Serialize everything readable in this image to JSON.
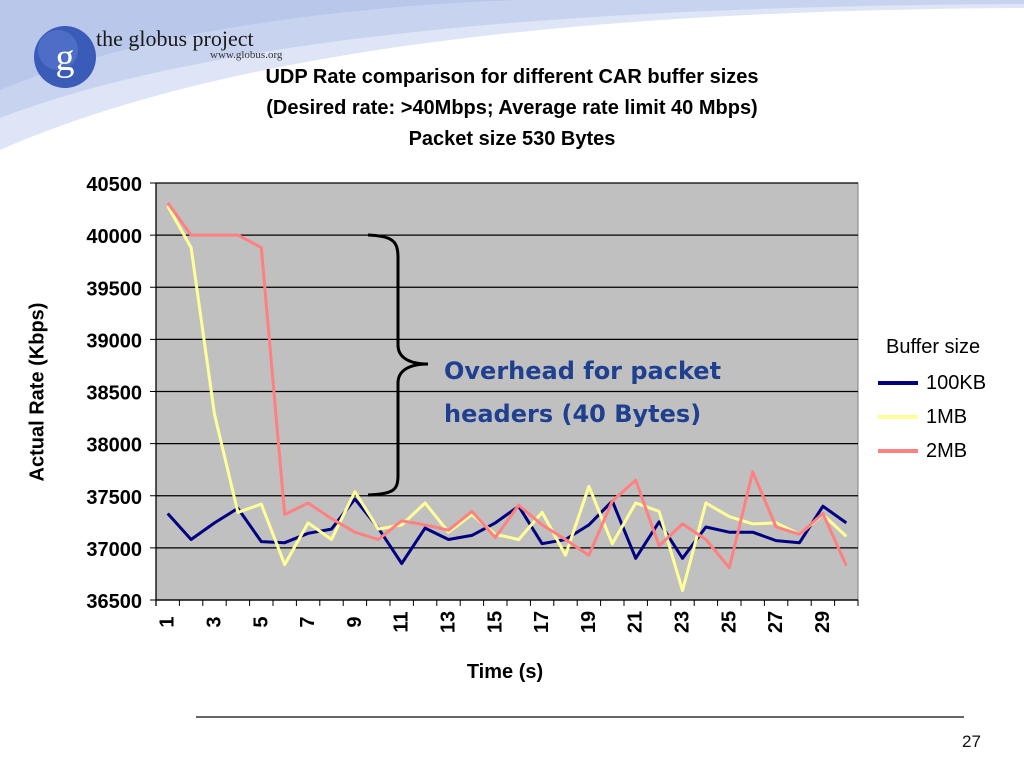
{
  "logo": {
    "brand": "the globus project",
    "url": "www.globus.org",
    "letter": "g"
  },
  "slide": {
    "page_number": "27"
  },
  "annotation": {
    "line1": "Overhead for packet",
    "line2": "headers (40 Bytes)"
  },
  "colors": {
    "plot_bg": "#c0c0c0",
    "series_100KB": "#000080",
    "series_1MB": "#ffff99",
    "series_2MB": "#ff8080",
    "annotation": "#1f3f8f"
  },
  "chart_data": {
    "type": "line",
    "title_lines": [
      "UDP Rate comparison for different CAR buffer sizes",
      "(Desired rate: >40Mbps; Average rate limit 40 Mbps)",
      "Packet size 530 Bytes"
    ],
    "xlabel": "Time (s)",
    "ylabel": "Actual Rate (Kbps)",
    "ylim": [
      36500,
      40500
    ],
    "y_ticks": [
      36500,
      37000,
      37500,
      38000,
      38500,
      39000,
      39500,
      40000,
      40500
    ],
    "x": [
      1,
      2,
      3,
      4,
      5,
      6,
      7,
      8,
      9,
      10,
      11,
      12,
      13,
      14,
      15,
      16,
      17,
      18,
      19,
      20,
      21,
      22,
      23,
      24,
      25,
      26,
      27,
      28,
      29,
      30
    ],
    "x_tick_labels": [
      "1",
      "3",
      "5",
      "7",
      "9",
      "11",
      "13",
      "15",
      "17",
      "19",
      "21",
      "23",
      "25",
      "27",
      "29"
    ],
    "grid": "horizontal",
    "legend": {
      "title": "Buffer size",
      "position": "right"
    },
    "series": [
      {
        "name": "100KB",
        "color": "#000080",
        "values": [
          37330,
          37080,
          37240,
          37380,
          37060,
          37050,
          37140,
          37180,
          37470,
          37190,
          36850,
          37190,
          37080,
          37120,
          37240,
          37400,
          37040,
          37080,
          37220,
          37450,
          36900,
          37250,
          36900,
          37200,
          37150,
          37150,
          37070,
          37050,
          37400,
          37240
        ]
      },
      {
        "name": "1MB",
        "color": "#ffff99",
        "values": [
          40280,
          39880,
          38280,
          37340,
          37420,
          36840,
          37240,
          37080,
          37540,
          37180,
          37220,
          37430,
          37150,
          37320,
          37130,
          37080,
          37340,
          36930,
          37590,
          37040,
          37430,
          37350,
          36590,
          37430,
          37300,
          37230,
          37240,
          37130,
          37320,
          37110
        ]
      },
      {
        "name": "2MB",
        "color": "#ff8080",
        "values": [
          40310,
          40000,
          40000,
          40000,
          39880,
          37320,
          37430,
          37280,
          37150,
          37080,
          37260,
          37220,
          37170,
          37350,
          37100,
          37410,
          37220,
          37080,
          36930,
          37450,
          37650,
          37020,
          37230,
          37080,
          36810,
          37730,
          37200,
          37130,
          37330,
          36830
        ]
      }
    ]
  }
}
